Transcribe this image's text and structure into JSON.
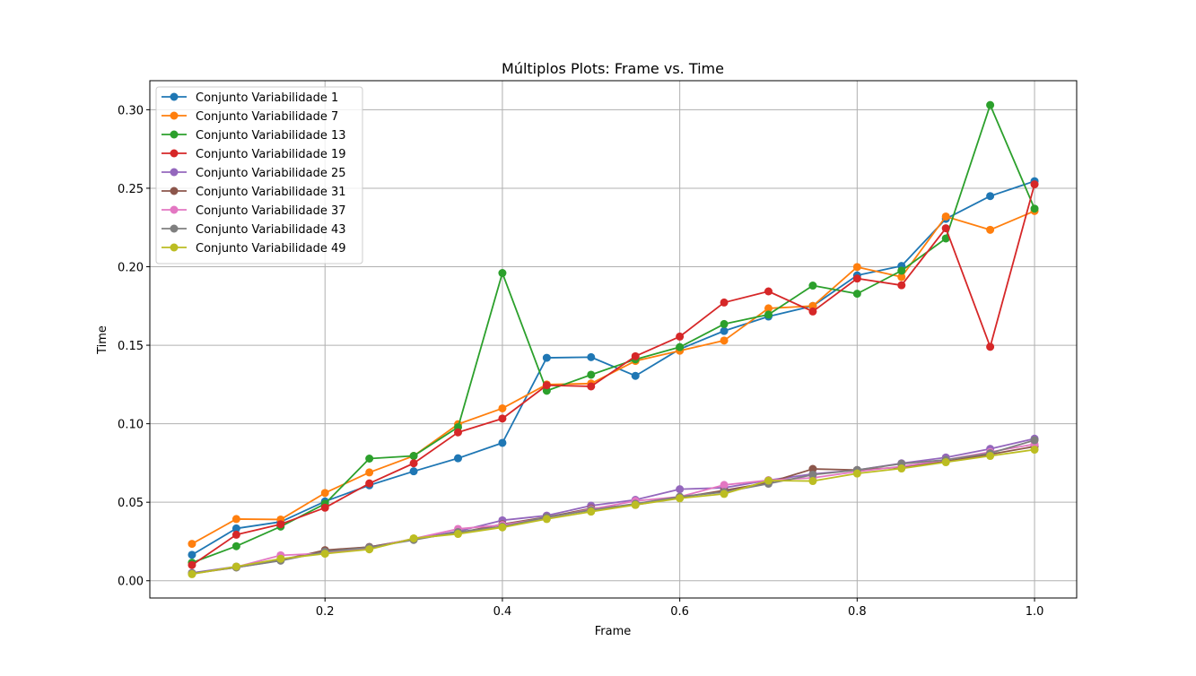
{
  "chart_data": {
    "type": "line",
    "title": "Múltiplos Plots: Frame vs. Time",
    "xlabel": "Frame",
    "ylabel": "Time",
    "xlim": [
      0.0025,
      1.0475
    ],
    "ylim": [
      -0.011,
      0.3185
    ],
    "grid": true,
    "legend_position": "top-left",
    "x_ticks": [
      0.2,
      0.4,
      0.6,
      0.8,
      1.0
    ],
    "x_tick_labels": [
      "0.2",
      "0.4",
      "0.6",
      "0.8",
      "1.0"
    ],
    "y_ticks": [
      0.0,
      0.05,
      0.1,
      0.15,
      0.2,
      0.25,
      0.3
    ],
    "y_tick_labels": [
      "0.00",
      "0.05",
      "0.10",
      "0.15",
      "0.20",
      "0.25",
      "0.30"
    ],
    "x": [
      0.05,
      0.1,
      0.15,
      0.2,
      0.25,
      0.3,
      0.35,
      0.4,
      0.45,
      0.5,
      0.55,
      0.6,
      0.65,
      0.7,
      0.75,
      0.8,
      0.85,
      0.9,
      0.95,
      1.0
    ],
    "series": [
      {
        "name": "Conjunto Variabilidade 1",
        "color": "#1f77b4",
        "values": [
          0.0165,
          0.0333,
          0.0375,
          0.0505,
          0.0608,
          0.0697,
          0.078,
          0.0878,
          0.142,
          0.1424,
          0.1305,
          0.1475,
          0.1591,
          0.1683,
          0.175,
          0.1945,
          0.2005,
          0.2305,
          0.245,
          0.2545
        ]
      },
      {
        "name": "Conjunto Variabilidade 7",
        "color": "#ff7f0e",
        "values": [
          0.0235,
          0.0393,
          0.039,
          0.0559,
          0.069,
          0.0795,
          0.0997,
          0.1098,
          0.125,
          0.1256,
          0.14,
          0.1465,
          0.153,
          0.1735,
          0.175,
          0.1998,
          0.1935,
          0.232,
          0.2235,
          0.2355
        ]
      },
      {
        "name": "Conjunto Variabilidade 13",
        "color": "#2ca02c",
        "values": [
          0.0115,
          0.022,
          0.0345,
          0.049,
          0.0778,
          0.0795,
          0.0978,
          0.196,
          0.121,
          0.1312,
          0.141,
          0.1488,
          0.1635,
          0.1695,
          0.188,
          0.1828,
          0.1975,
          0.218,
          0.303,
          0.237
        ]
      },
      {
        "name": "Conjunto Variabilidade 19",
        "color": "#d62728",
        "values": [
          0.01,
          0.0293,
          0.036,
          0.0465,
          0.062,
          0.0748,
          0.0945,
          0.1033,
          0.1245,
          0.1238,
          0.143,
          0.1555,
          0.1772,
          0.1843,
          0.1715,
          0.1925,
          0.1882,
          0.2245,
          0.149,
          0.2525
        ]
      },
      {
        "name": "Conjunto Variabilidade 25",
        "color": "#9467bd",
        "values": [
          0.005,
          0.009,
          0.0135,
          0.019,
          0.0215,
          0.0265,
          0.0315,
          0.0385,
          0.0415,
          0.0478,
          0.0515,
          0.0583,
          0.0592,
          0.064,
          0.068,
          0.0705,
          0.0748,
          0.0785,
          0.084,
          0.0905
        ]
      },
      {
        "name": "Conjunto Variabilidade 31",
        "color": "#8c564b",
        "values": [
          0.0045,
          0.0085,
          0.013,
          0.0195,
          0.0215,
          0.0265,
          0.0305,
          0.036,
          0.0405,
          0.046,
          0.0483,
          0.053,
          0.0575,
          0.0625,
          0.0712,
          0.0705,
          0.0723,
          0.076,
          0.0805,
          0.0855
        ]
      },
      {
        "name": "Conjunto Variabilidade 37",
        "color": "#e377c2",
        "values": [
          0.0045,
          0.0088,
          0.0162,
          0.0175,
          0.0208,
          0.0268,
          0.033,
          0.0355,
          0.04,
          0.0455,
          0.0508,
          0.0535,
          0.061,
          0.064,
          0.0655,
          0.0695,
          0.0728,
          0.077,
          0.082,
          0.087
        ]
      },
      {
        "name": "Conjunto Variabilidade 43",
        "color": "#7f7f7f",
        "values": [
          0.0048,
          0.0085,
          0.0128,
          0.0185,
          0.0212,
          0.026,
          0.031,
          0.0345,
          0.0405,
          0.045,
          0.049,
          0.0535,
          0.0565,
          0.0618,
          0.0675,
          0.0705,
          0.0745,
          0.077,
          0.0812,
          0.0895
        ]
      },
      {
        "name": "Conjunto Variabilidade 49",
        "color": "#bcbd22",
        "values": [
          0.0042,
          0.009,
          0.014,
          0.0172,
          0.02,
          0.027,
          0.0298,
          0.034,
          0.0393,
          0.044,
          0.0483,
          0.0525,
          0.0553,
          0.0638,
          0.0635,
          0.0683,
          0.0715,
          0.0755,
          0.0795,
          0.0835
        ]
      }
    ]
  }
}
